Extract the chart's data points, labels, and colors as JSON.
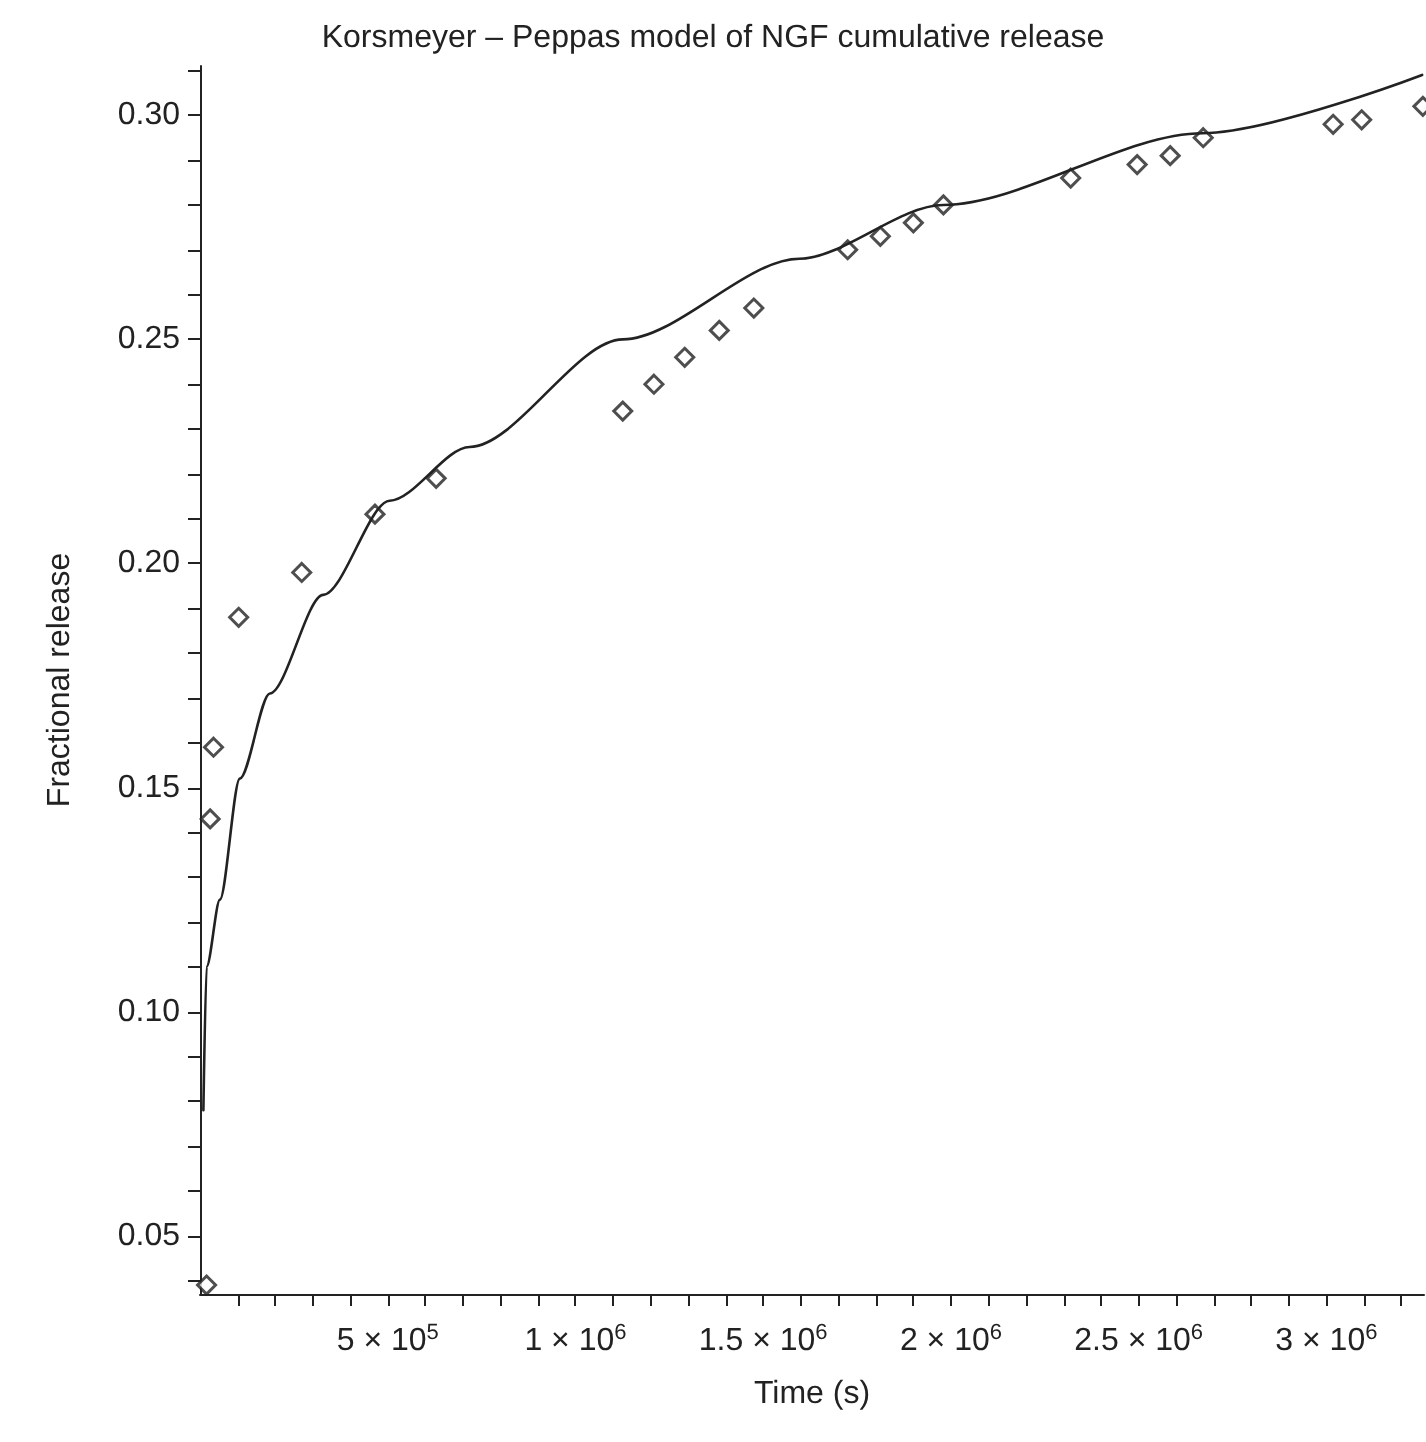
{
  "chart_data": {
    "type": "scatter",
    "title": "Korsmeyer – Peppas model of NGF cumulative release",
    "xlabel": "Time (s)",
    "ylabel": "Fractional release",
    "xlim": [
      0,
      3260000
    ],
    "ylim": [
      0.037,
      0.311
    ],
    "xticks": [
      {
        "value": 100000,
        "label": null
      },
      {
        "value": 200000,
        "label": null
      },
      {
        "value": 300000,
        "label": null
      },
      {
        "value": 400000,
        "label": null
      },
      {
        "value": 500000,
        "label": "5 × 10$^{5}$"
      },
      {
        "value": 600000,
        "label": null
      },
      {
        "value": 700000,
        "label": null
      },
      {
        "value": 800000,
        "label": null
      },
      {
        "value": 900000,
        "label": null
      },
      {
        "value": 1000000,
        "label": "1 × 10$^{6}$"
      },
      {
        "value": 1100000,
        "label": null
      },
      {
        "value": 1200000,
        "label": null
      },
      {
        "value": 1300000,
        "label": null
      },
      {
        "value": 1400000,
        "label": null
      },
      {
        "value": 1500000,
        "label": "1.5 × 10$^{6}$"
      },
      {
        "value": 1600000,
        "label": null
      },
      {
        "value": 1700000,
        "label": null
      },
      {
        "value": 1800000,
        "label": null
      },
      {
        "value": 1900000,
        "label": null
      },
      {
        "value": 2000000,
        "label": "2 × 10$^{6}$"
      },
      {
        "value": 2100000,
        "label": null
      },
      {
        "value": 2200000,
        "label": null
      },
      {
        "value": 2300000,
        "label": null
      },
      {
        "value": 2400000,
        "label": null
      },
      {
        "value": 2500000,
        "label": "2.5 × 10$^{6}$"
      },
      {
        "value": 2600000,
        "label": null
      },
      {
        "value": 2700000,
        "label": null
      },
      {
        "value": 2800000,
        "label": null
      },
      {
        "value": 2900000,
        "label": null
      },
      {
        "value": 3000000,
        "label": "3 × 10$^{6}$"
      },
      {
        "value": 3100000,
        "label": null
      },
      {
        "value": 3200000,
        "label": null
      }
    ],
    "yticks": [
      {
        "value": 0.04,
        "label": null
      },
      {
        "value": 0.05,
        "label": "0.05"
      },
      {
        "value": 0.06,
        "label": null
      },
      {
        "value": 0.07,
        "label": null
      },
      {
        "value": 0.08,
        "label": null
      },
      {
        "value": 0.09,
        "label": null
      },
      {
        "value": 0.1,
        "label": "0.10"
      },
      {
        "value": 0.11,
        "label": null
      },
      {
        "value": 0.12,
        "label": null
      },
      {
        "value": 0.13,
        "label": null
      },
      {
        "value": 0.14,
        "label": null
      },
      {
        "value": 0.15,
        "label": "0.15"
      },
      {
        "value": 0.16,
        "label": null
      },
      {
        "value": 0.17,
        "label": null
      },
      {
        "value": 0.18,
        "label": null
      },
      {
        "value": 0.19,
        "label": null
      },
      {
        "value": 0.2,
        "label": "0.20"
      },
      {
        "value": 0.21,
        "label": null
      },
      {
        "value": 0.22,
        "label": null
      },
      {
        "value": 0.23,
        "label": null
      },
      {
        "value": 0.24,
        "label": null
      },
      {
        "value": 0.25,
        "label": "0.25"
      },
      {
        "value": 0.26,
        "label": null
      },
      {
        "value": 0.27,
        "label": null
      },
      {
        "value": 0.28,
        "label": null
      },
      {
        "value": 0.29,
        "label": null
      },
      {
        "value": 0.3,
        "label": "0.30"
      },
      {
        "value": 0.31,
        "label": null
      }
    ],
    "grid": false,
    "series": [
      {
        "marker": "diamond",
        "color": "#222222",
        "x": [
          17500,
          27000,
          36000,
          103000,
          271000,
          466000,
          629000,
          1126000,
          1209000,
          1291000,
          1383000,
          1475000,
          1725000,
          1812000,
          1900000,
          1980000,
          2319000,
          2496000,
          2584000,
          2672000,
          3018000,
          3094000,
          3257000
        ],
        "values": [
          0.039,
          0.143,
          0.159,
          0.188,
          0.198,
          0.211,
          0.219,
          0.234,
          0.24,
          0.246,
          0.252,
          0.257,
          0.27,
          0.273,
          0.276,
          0.28,
          0.286,
          0.289,
          0.291,
          0.295,
          0.298,
          0.299,
          0.302
        ]
      },
      {
        "type": "line",
        "marker": "none",
        "line_style": "solid",
        "color": "#222222",
        "x": [
          9000,
          17500,
          53000,
          106000,
          186000,
          328000,
          505000,
          718000,
          1126000,
          1596000,
          1979000,
          2670000,
          3255000
        ],
        "values": [
          0.078,
          0.11,
          0.125,
          0.152,
          0.171,
          0.193,
          0.214,
          0.226,
          0.25,
          0.268,
          0.28,
          0.296,
          0.309
        ]
      }
    ]
  }
}
